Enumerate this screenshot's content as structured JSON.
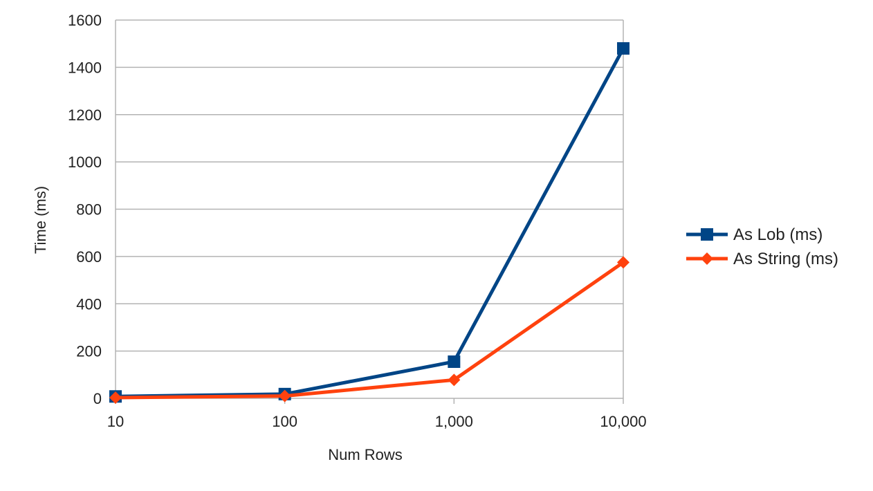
{
  "chart_data": {
    "type": "line",
    "title": "",
    "xlabel": "Num Rows",
    "ylabel": "Time (ms)",
    "categories": [
      "10",
      "100",
      "1,000",
      "10,000"
    ],
    "ylim": [
      0,
      1600
    ],
    "yticks": [
      0,
      200,
      400,
      600,
      800,
      1000,
      1200,
      1400,
      1600
    ],
    "grid": true,
    "legend_position": "right",
    "series": [
      {
        "name": "As Lob (ms)",
        "color": "#004586",
        "marker": "square",
        "values": [
          8,
          18,
          155,
          1480
        ]
      },
      {
        "name": "As String (ms)",
        "color": "#ff420e",
        "marker": "diamond",
        "values": [
          3,
          10,
          78,
          575
        ]
      }
    ]
  }
}
